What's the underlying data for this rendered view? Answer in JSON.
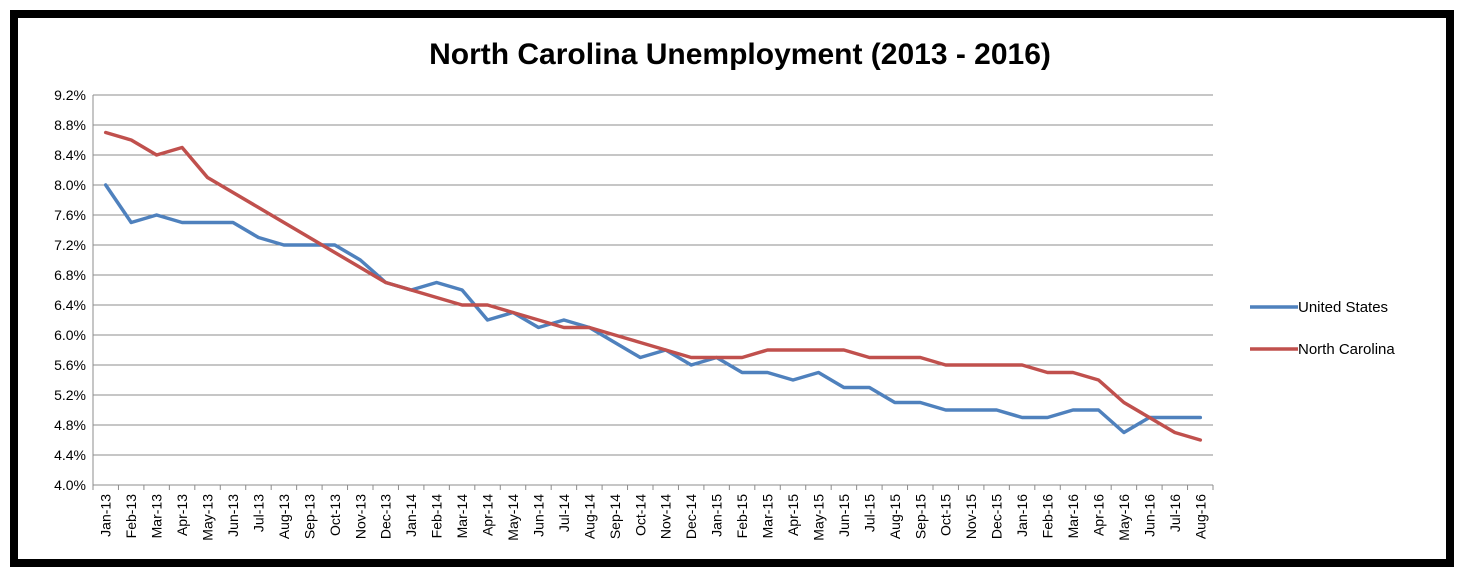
{
  "chart_data": {
    "type": "line",
    "title": "North Carolina Unemployment  (2013 - 2016)",
    "xlabel": "",
    "ylabel": "",
    "ylim": [
      4.0,
      9.2
    ],
    "y_ticks": [
      "4.0%",
      "4.4%",
      "4.8%",
      "5.2%",
      "5.6%",
      "6.0%",
      "6.4%",
      "6.8%",
      "7.2%",
      "7.6%",
      "8.0%",
      "8.4%",
      "8.8%",
      "9.2%"
    ],
    "y_tick_values": [
      4.0,
      4.4,
      4.8,
      5.2,
      5.6,
      6.0,
      6.4,
      6.8,
      7.2,
      7.6,
      8.0,
      8.4,
      8.8,
      9.2
    ],
    "grid": "horizontal",
    "legend_position": "right",
    "categories": [
      "Jan-13",
      "Feb-13",
      "Mar-13",
      "Apr-13",
      "May-13",
      "Jun-13",
      "Jul-13",
      "Aug-13",
      "Sep-13",
      "Oct-13",
      "Nov-13",
      "Dec-13",
      "Jan-14",
      "Feb-14",
      "Mar-14",
      "Apr-14",
      "May-14",
      "Jun-14",
      "Jul-14",
      "Aug-14",
      "Sep-14",
      "Oct-14",
      "Nov-14",
      "Dec-14",
      "Jan-15",
      "Feb-15",
      "Mar-15",
      "Apr-15",
      "May-15",
      "Jun-15",
      "Jul-15",
      "Aug-15",
      "Sep-15",
      "Oct-15",
      "Nov-15",
      "Dec-15",
      "Jan-16",
      "Feb-16",
      "Mar-16",
      "Apr-16",
      "May-16",
      "Jun-16",
      "Jul-16",
      "Aug-16"
    ],
    "series": [
      {
        "name": "United States",
        "color": "#4f81bd",
        "values": [
          8.0,
          7.5,
          7.6,
          7.5,
          7.5,
          7.5,
          7.3,
          7.2,
          7.2,
          7.2,
          7.0,
          6.7,
          6.6,
          6.7,
          6.6,
          6.2,
          6.3,
          6.1,
          6.2,
          6.1,
          5.9,
          5.7,
          5.8,
          5.6,
          5.7,
          5.5,
          5.5,
          5.4,
          5.5,
          5.3,
          5.3,
          5.1,
          5.1,
          5.0,
          5.0,
          5.0,
          4.9,
          4.9,
          5.0,
          5.0,
          4.7,
          4.9,
          4.9,
          4.9
        ]
      },
      {
        "name": "North Carolina",
        "color": "#c0504d",
        "values": [
          8.7,
          8.6,
          8.4,
          8.5,
          8.1,
          7.9,
          7.7,
          7.5,
          7.3,
          7.1,
          6.9,
          6.7,
          6.6,
          6.5,
          6.4,
          6.4,
          6.3,
          6.2,
          6.1,
          6.1,
          6.0,
          5.9,
          5.8,
          5.7,
          5.7,
          5.7,
          5.8,
          5.8,
          5.8,
          5.8,
          5.7,
          5.7,
          5.7,
          5.6,
          5.6,
          5.6,
          5.6,
          5.5,
          5.5,
          5.4,
          5.1,
          4.9,
          4.7,
          4.6
        ]
      }
    ]
  }
}
